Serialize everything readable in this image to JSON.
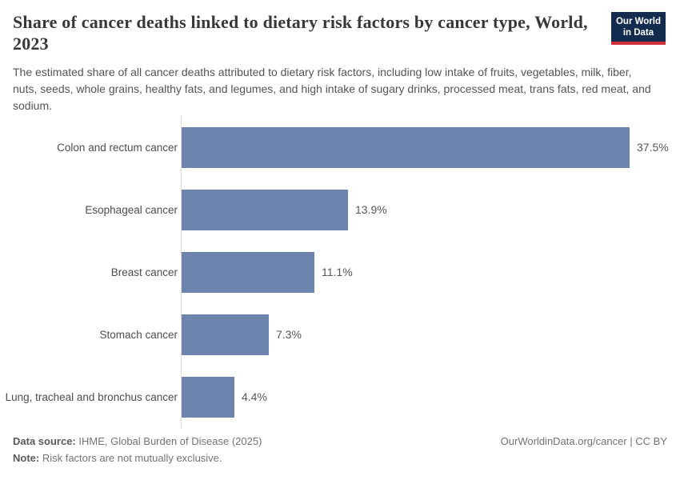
{
  "header": {
    "title": "Share of cancer deaths linked to dietary risk factors by cancer type, World, 2023",
    "subtitle": "The estimated share of all cancer deaths attributed to dietary risk factors, including low intake of fruits, vegetables, milk, fiber, nuts, seeds, whole grains, healthy fats, and legumes, and high intake of sugary drinks, processed meat, trans fats, red meat, and sodium.",
    "logo": {
      "line1": "Our World",
      "line2": "in Data"
    }
  },
  "chart_data": {
    "type": "bar",
    "orientation": "horizontal",
    "title": "Share of cancer deaths linked to dietary risk factors by cancer type, World, 2023",
    "categories": [
      "Colon and rectum cancer",
      "Esophageal cancer",
      "Breast cancer",
      "Stomach cancer",
      "Lung, tracheal and bronchus cancer"
    ],
    "values": [
      37.5,
      13.9,
      11.1,
      7.3,
      4.4
    ],
    "value_labels": [
      "37.5%",
      "13.9%",
      "11.1%",
      "7.3%",
      "4.4%"
    ],
    "unit": "%",
    "xlim": [
      0,
      37.5
    ],
    "grid": false,
    "legend": "none",
    "bar_color": "#6d85ae",
    "axis_color": "#dcdcdc"
  },
  "footer": {
    "data_source_label": "Data source:",
    "data_source_text": " IHME, Global Burden of Disease (2025)",
    "note_label": "Note:",
    "note_text": " Risk factors are not mutually exclusive.",
    "right_text": "OurWorldinData.org/cancer | CC BY"
  },
  "colors": {
    "bar": "#6d85ae",
    "logo_background": "#122b4f",
    "logo_accent": "#d0303d",
    "axis": "#dcdcdc"
  }
}
